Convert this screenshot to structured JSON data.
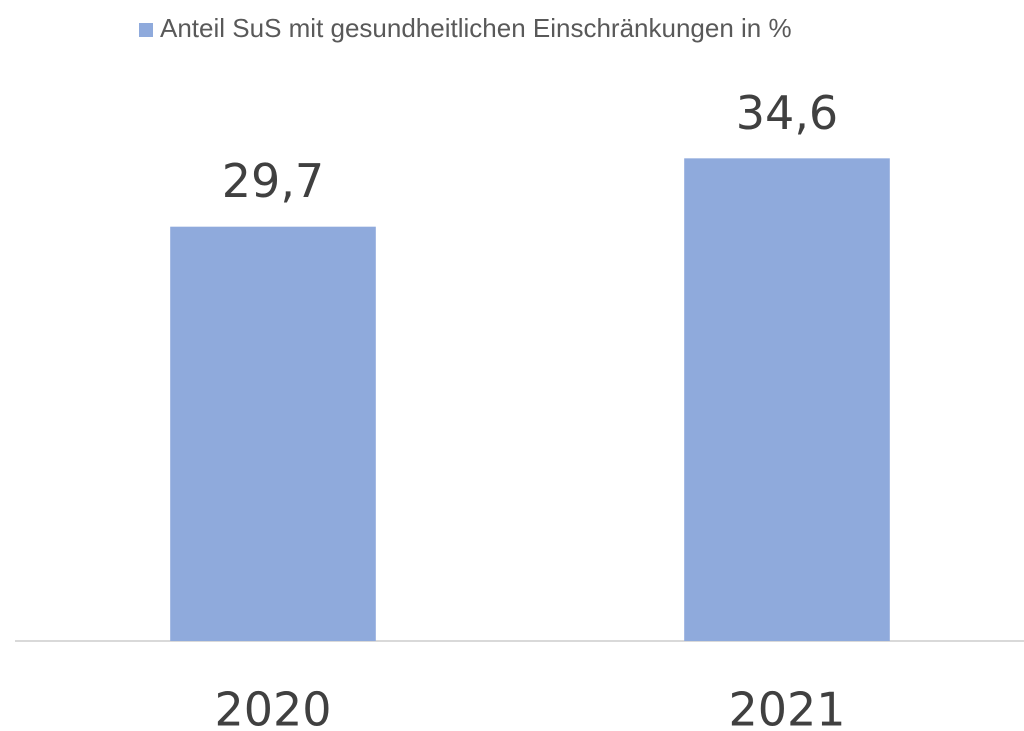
{
  "chart_data": {
    "type": "bar",
    "categories": [
      "2020",
      "2021"
    ],
    "series": [
      {
        "name": "Anteil SuS mit gesundheitlichen Einschränkungen in %",
        "color": "#8faadc",
        "values": [
          29.7,
          34.6
        ],
        "value_labels": [
          "29,7",
          "34,6"
        ]
      }
    ],
    "ylim": [
      0,
      40
    ]
  }
}
